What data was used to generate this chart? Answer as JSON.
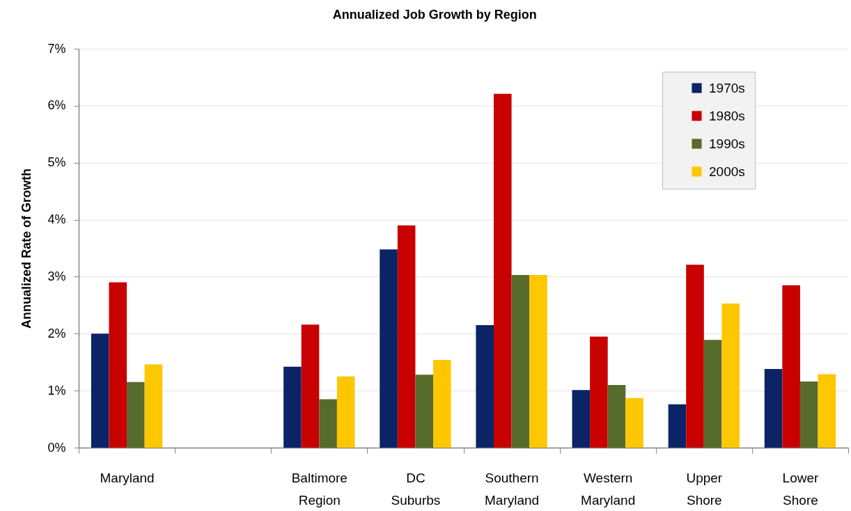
{
  "chart_data": {
    "type": "bar",
    "title": "Annualized Job Growth by Region",
    "ylabel": "Annualized Rate of Growth",
    "categories": [
      "Maryland",
      null,
      "Baltimore Region",
      "DC Suburbs",
      "Southern Maryland",
      "Western Maryland",
      "Upper Shore",
      "Lower Shore"
    ],
    "series": [
      {
        "name": "1970s",
        "color": "#0a2466",
        "values": [
          2.0,
          null,
          1.42,
          3.48,
          2.15,
          1.01,
          0.76,
          1.38
        ]
      },
      {
        "name": "1980s",
        "color": "#c80000",
        "values": [
          2.9,
          null,
          2.16,
          3.9,
          6.21,
          1.95,
          3.21,
          2.85
        ]
      },
      {
        "name": "1990s",
        "color": "#566b2c",
        "values": [
          1.15,
          null,
          0.85,
          1.28,
          3.03,
          1.1,
          1.89,
          1.16
        ]
      },
      {
        "name": "2000s",
        "color": "#ffc700",
        "values": [
          1.46,
          null,
          1.25,
          1.54,
          3.03,
          0.87,
          2.53,
          1.29
        ]
      }
    ],
    "ylim": [
      0,
      7
    ],
    "yticks": [
      {
        "value": 0,
        "label": "0%"
      },
      {
        "value": 1,
        "label": "1%"
      },
      {
        "value": 2,
        "label": "2%"
      },
      {
        "value": 3,
        "label": "3%"
      },
      {
        "value": 4,
        "label": "4%"
      },
      {
        "value": 5,
        "label": "5%"
      },
      {
        "value": 6,
        "label": "6%"
      },
      {
        "value": 7,
        "label": "7%"
      }
    ],
    "grid": "y",
    "legend": "top right"
  }
}
